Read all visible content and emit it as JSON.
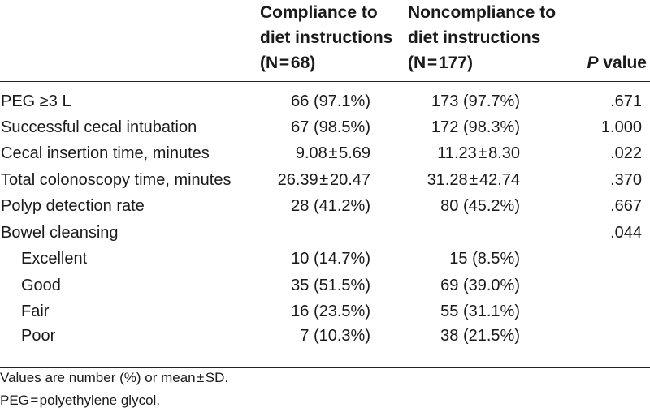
{
  "header": {
    "col_label": "",
    "col_compliance": [
      "Compliance to",
      "diet instructions",
      "(N = 68)"
    ],
    "col_noncompliance": [
      "Noncompliance to",
      "diet instructions",
      "(N = 177)"
    ],
    "col_p_italic": "P",
    "col_p_rest": " value"
  },
  "rows": [
    {
      "label": "PEG ≥3 L",
      "compliance": "66 (97.1%)",
      "noncompliance": "173 (97.7%)",
      "p": ".671",
      "indent": false
    },
    {
      "label": "Successful cecal intubation",
      "compliance": "67 (98.5%)",
      "noncompliance": "172 (98.3%)",
      "p": "1.000",
      "indent": false
    },
    {
      "label": "Cecal insertion time, minutes",
      "compliance": "9.08 ± 5.69",
      "noncompliance": "11.23 ± 8.30",
      "p": ".022",
      "indent": false
    },
    {
      "label": "Total colonoscopy time, minutes",
      "compliance": "26.39 ± 20.47",
      "noncompliance": "31.28 ± 42.74",
      "p": ".370",
      "indent": false
    },
    {
      "label": "Polyp detection rate",
      "compliance": "28 (41.2%)",
      "noncompliance": "80 (45.2%)",
      "p": ".667",
      "indent": false
    },
    {
      "label": "Bowel cleansing",
      "compliance": "",
      "noncompliance": "",
      "p": ".044",
      "indent": false
    },
    {
      "label": "Excellent",
      "compliance": "10 (14.7%)",
      "noncompliance": "15 (8.5%)",
      "p": "",
      "indent": true
    },
    {
      "label": "Good",
      "compliance": "35 (51.5%)",
      "noncompliance": "69 (39.0%)",
      "p": "",
      "indent": true
    },
    {
      "label": "Fair",
      "compliance": "16 (23.5%)",
      "noncompliance": "55 (31.1%)",
      "p": "",
      "indent": true
    },
    {
      "label": "Poor",
      "compliance": "7 (10.3%)",
      "noncompliance": "38 (21.5%)",
      "p": "",
      "indent": true
    }
  ],
  "footnotes": [
    "Values are number (%) or mean ± SD.",
    "PEG = polyethylene glycol."
  ]
}
